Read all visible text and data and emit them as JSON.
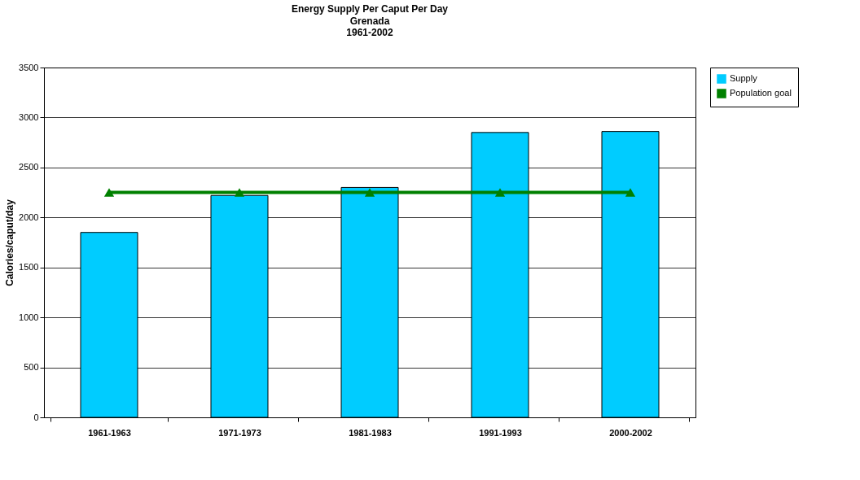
{
  "chart_data": {
    "type": "bar",
    "title": "Energy Supply Per Caput Per Day",
    "subtitle": "Grenada\n1961-2002",
    "ylabel": "Calories/caput/day",
    "categories": [
      "1961-1963",
      "1971-1973",
      "1981-1983",
      "1991-1993",
      "2000-2002"
    ],
    "series": [
      {
        "name": "Supply",
        "color": "#00ccff",
        "values": [
          1850,
          2220,
          2300,
          2850,
          2860
        ]
      },
      {
        "name": "Population goal",
        "type": "line",
        "color": "#008000",
        "marker": "triangle",
        "values": [
          2250,
          2250,
          2250,
          2250,
          2250
        ]
      }
    ],
    "ylim": [
      0,
      3500
    ],
    "yticks": [
      0,
      500,
      1000,
      1500,
      2000,
      2500,
      3000,
      3500
    ],
    "grid": "y",
    "legend": "right"
  }
}
